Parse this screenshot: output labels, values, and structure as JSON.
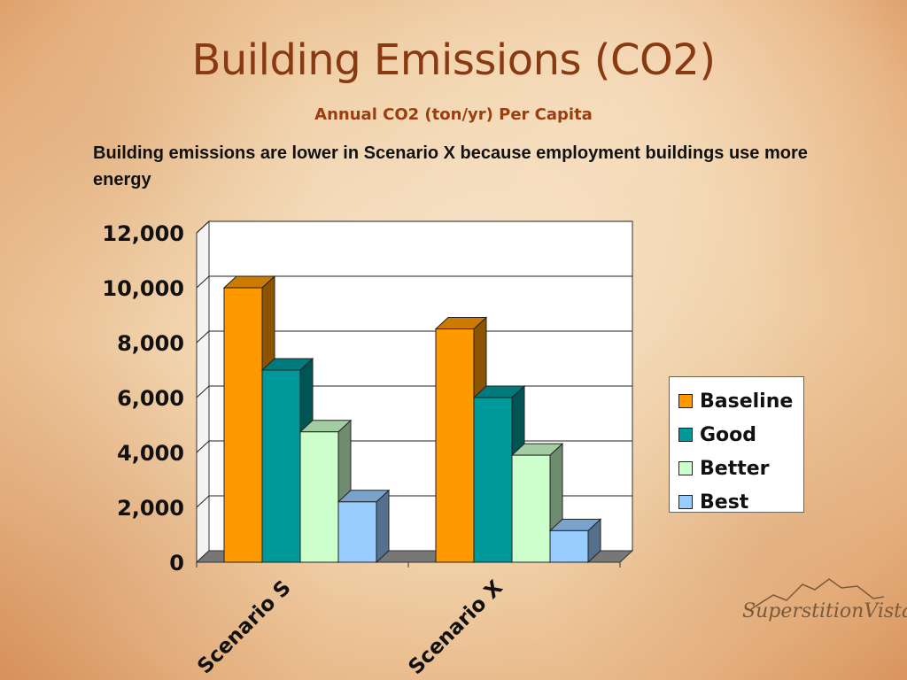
{
  "slide": {
    "title": "Building Emissions (CO2)",
    "subtitle": "Annual CO2 (ton/yr) Per Capita",
    "note": "Building emissions are lower in Scenario X because employment buildings use more energy",
    "logo_text": "SuperstitionVistas"
  },
  "chart_data": {
    "type": "bar",
    "style": "3d-clustered",
    "categories": [
      "Scenario S",
      "Scenario X"
    ],
    "series": [
      {
        "name": "Baseline",
        "values": [
          10000,
          8500
        ],
        "color": "#ff9900"
      },
      {
        "name": "Good",
        "values": [
          7000,
          6000
        ],
        "color": "#009999"
      },
      {
        "name": "Better",
        "values": [
          4750,
          3900
        ],
        "color": "#ccffcc"
      },
      {
        "name": "Best",
        "values": [
          2200,
          1150
        ],
        "color": "#99ccff"
      }
    ],
    "ylim": [
      0,
      12000
    ],
    "yticks": [
      "0",
      "2,000",
      "4,000",
      "6,000",
      "8,000",
      "10,000",
      "12,000"
    ],
    "grid": true,
    "legend": "right"
  }
}
